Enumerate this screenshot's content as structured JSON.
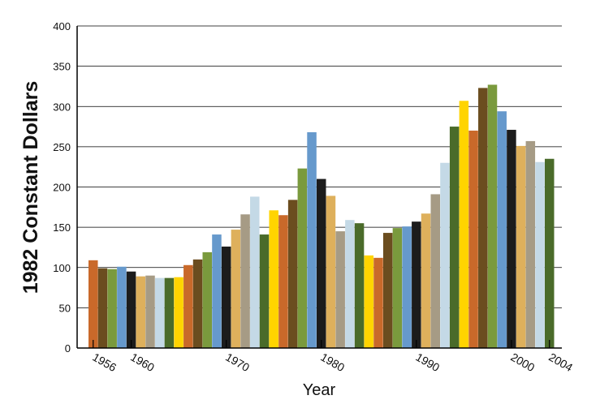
{
  "chart_data": {
    "type": "bar",
    "title": "",
    "xlabel": "Year",
    "ylabel": "1982 Constant Dollars",
    "ylim": [
      0,
      400
    ],
    "yticks": [
      "0",
      "50",
      "100",
      "150",
      "200",
      "250",
      "300",
      "350",
      "400"
    ],
    "xticks": [
      "1956",
      "1960",
      "1970",
      "1980",
      "1990",
      "2000",
      "2004"
    ],
    "xtick_years": [
      1956,
      1960,
      1970,
      1980,
      1990,
      2000,
      2004
    ],
    "grid": true,
    "legend": false,
    "years": [
      1956,
      1957,
      1958,
      1959,
      1960,
      1961,
      1962,
      1963,
      1964,
      1965,
      1966,
      1967,
      1968,
      1969,
      1970,
      1971,
      1972,
      1973,
      1974,
      1975,
      1976,
      1977,
      1978,
      1979,
      1980,
      1981,
      1982,
      1983,
      1984,
      1985,
      1986,
      1987,
      1988,
      1989,
      1990,
      1991,
      1992,
      1993,
      1994,
      1995,
      1996,
      1997,
      1998,
      1999,
      2000,
      2001,
      2002,
      2003,
      2004
    ],
    "values": [
      109,
      99,
      98,
      101,
      95,
      89,
      90,
      87,
      87,
      88,
      103,
      110,
      119,
      141,
      126,
      147,
      166,
      188,
      141,
      171,
      165,
      184,
      223,
      268,
      210,
      189,
      145,
      159,
      155,
      115,
      112,
      143,
      149,
      151,
      157,
      167,
      191,
      230,
      275,
      307,
      270,
      323,
      327,
      294,
      271,
      251,
      257,
      231,
      235
    ],
    "palette": [
      "#c9692a",
      "#6b4d1f",
      "#7a9a3d",
      "#6699cc",
      "#1c1c1c",
      "#deb05c",
      "#a69b85",
      "#c4d9e6",
      "#4a6b2a",
      "#ffd400"
    ]
  }
}
